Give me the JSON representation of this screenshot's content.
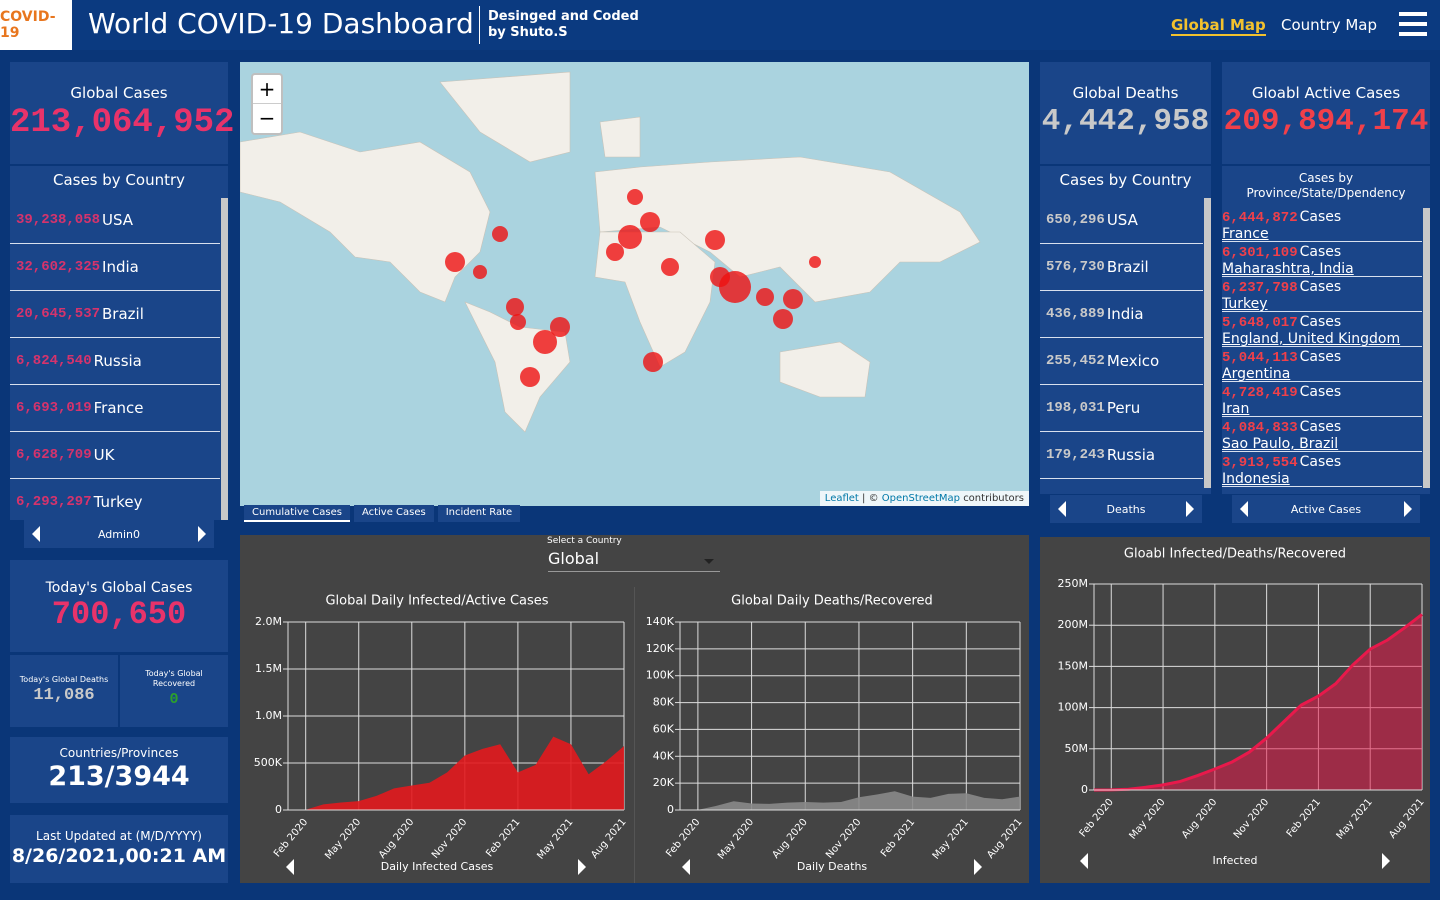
{
  "header": {
    "logo": "COVID-19",
    "title": "World COVID-19 Dashboard",
    "credit_line1": "Desinged and Coded",
    "credit_line2": "by Shuto.S",
    "nav": [
      "Global Map",
      "Country Map"
    ]
  },
  "global_cases": {
    "label": "Global Cases",
    "value": "213,064,952"
  },
  "cases_by_country": {
    "title": "Cases by Country",
    "nav_label": "Admin0",
    "rows": [
      {
        "count": "39,238,058",
        "name": "USA"
      },
      {
        "count": "32,602,325",
        "name": "India"
      },
      {
        "count": "20,645,537",
        "name": "Brazil"
      },
      {
        "count": "6,824,540",
        "name": "Russia"
      },
      {
        "count": "6,693,019",
        "name": "France"
      },
      {
        "count": "6,628,709",
        "name": "UK"
      },
      {
        "count": "6,293,297",
        "name": "Turkey"
      }
    ]
  },
  "todays_cases": {
    "label": "Today's Global Cases",
    "value": "700,650"
  },
  "todays_deaths": {
    "label": "Today's Global Deaths",
    "value": "11,086"
  },
  "todays_recovered": {
    "label": "Today's Global Recovered",
    "value": "0"
  },
  "countries_provinces": {
    "label": "Countries/Provinces",
    "value": "213/3944"
  },
  "last_updated": {
    "label": "Last Updated at (M/D/YYYY)",
    "value": "8/26/2021,00:21 AM"
  },
  "map": {
    "zoom_in": "+",
    "zoom_out": "−",
    "attribution_link1": "Leaflet",
    "attribution_sep": "| ©",
    "attribution_link2": "OpenStreetMap",
    "attribution_tail": "contributors",
    "tabs": [
      "Cumulative Cases",
      "Active Cases",
      "Incident Rate"
    ]
  },
  "country_select": {
    "label": "Select a Country",
    "value": "Global"
  },
  "global_deaths": {
    "label": "Global Deaths",
    "value": "4,442,958",
    "list_title": "Cases by Country",
    "nav_label": "Deaths",
    "rows": [
      {
        "count": "650,296",
        "name": "USA"
      },
      {
        "count": "576,730",
        "name": "Brazil"
      },
      {
        "count": "436,889",
        "name": "India"
      },
      {
        "count": "255,452",
        "name": "Mexico"
      },
      {
        "count": "198,031",
        "name": "Peru"
      },
      {
        "count": "179,243",
        "name": "Russia"
      }
    ]
  },
  "active_cases": {
    "label": "Gloabl Active Cases",
    "value": "209,894,174",
    "list_title": "Cases by Province/State/Dpendency",
    "nav_label": "Active Cases",
    "rows": [
      {
        "count": "6,444,872",
        "unit": "Cases",
        "place": "France"
      },
      {
        "count": "6,301,109",
        "unit": "Cases",
        "place": "Maharashtra, India"
      },
      {
        "count": "6,237,798",
        "unit": "Cases",
        "place": "Turkey"
      },
      {
        "count": "5,648,017",
        "unit": "Cases",
        "place": "England, United Kingdom"
      },
      {
        "count": "5,044,113",
        "unit": "Cases",
        "place": "Argentina"
      },
      {
        "count": "4,728,419",
        "unit": "Cases",
        "place": "Iran"
      },
      {
        "count": "4,084,833",
        "unit": "Cases",
        "place": "Sao Paulo, Brazil"
      },
      {
        "count": "3,913,554",
        "unit": "Cases",
        "place": "Indonesia"
      }
    ]
  },
  "chart_data": [
    {
      "type": "area",
      "title": "Global Daily Infected/Active Cases",
      "caption": "Daily Infected Cases",
      "color": "#e3191e",
      "x": [
        "2020-01",
        "2020-02",
        "2020-03",
        "2020-04",
        "2020-05",
        "2020-06",
        "2020-07",
        "2020-08",
        "2020-09",
        "2020-10",
        "2020-11",
        "2020-12",
        "2021-01",
        "2021-02",
        "2021-03",
        "2021-04",
        "2021-05",
        "2021-06",
        "2021-07",
        "2021-08"
      ],
      "values": [
        0,
        2000,
        60000,
        80000,
        95000,
        150000,
        230000,
        260000,
        290000,
        400000,
        580000,
        650000,
        700000,
        400000,
        480000,
        780000,
        700000,
        380000,
        520000,
        680000
      ],
      "ylim": [
        0,
        2000000
      ],
      "yticks": [
        0,
        {
          "value": 500000,
          "label": "500K"
        },
        {
          "value": 1000000,
          "label": "1.0M"
        },
        {
          "value": 1500000,
          "label": "1.5M"
        },
        {
          "value": 2000000,
          "label": "2.0M"
        }
      ],
      "xticks": [
        {
          "value": "2020-02",
          "label": "Feb 2020"
        },
        {
          "value": "2020-05",
          "label": "May 2020"
        },
        {
          "value": "2020-08",
          "label": "Aug 2020"
        },
        {
          "value": "2020-11",
          "label": "Nov 2020"
        },
        {
          "value": "2021-02",
          "label": "Feb 2021"
        },
        {
          "value": "2021-05",
          "label": "May 2021"
        },
        {
          "value": "2021-08",
          "label": "Aug 2021"
        }
      ],
      "grid": true
    },
    {
      "type": "area",
      "title": "Global Daily Deaths/Recovered",
      "caption": "Daily Deaths",
      "color": "#8a8a8a",
      "x": [
        "2020-01",
        "2020-02",
        "2020-03",
        "2020-04",
        "2020-05",
        "2020-06",
        "2020-07",
        "2020-08",
        "2020-09",
        "2020-10",
        "2020-11",
        "2020-12",
        "2021-01",
        "2021-02",
        "2021-03",
        "2021-04",
        "2021-05",
        "2021-06",
        "2021-07",
        "2021-08"
      ],
      "values": [
        0,
        50,
        3000,
        6500,
        4800,
        4600,
        5500,
        6000,
        5500,
        6000,
        9500,
        11500,
        14000,
        10000,
        9000,
        12000,
        12500,
        9000,
        8000,
        10000
      ],
      "ylim": [
        0,
        140000
      ],
      "yticks": [
        0,
        {
          "value": 20000,
          "label": "20K"
        },
        {
          "value": 40000,
          "label": "40K"
        },
        {
          "value": 60000,
          "label": "60K"
        },
        {
          "value": 80000,
          "label": "80K"
        },
        {
          "value": 100000,
          "label": "100K"
        },
        {
          "value": 120000,
          "label": "120K"
        },
        {
          "value": 140000,
          "label": "140K"
        }
      ],
      "xticks": [
        {
          "value": "2020-02",
          "label": "Feb 2020"
        },
        {
          "value": "2020-05",
          "label": "May 2020"
        },
        {
          "value": "2020-08",
          "label": "Aug 2020"
        },
        {
          "value": "2020-11",
          "label": "Nov 2020"
        },
        {
          "value": "2021-02",
          "label": "Feb 2021"
        },
        {
          "value": "2021-05",
          "label": "May 2021"
        },
        {
          "value": "2021-08",
          "label": "Aug 2021"
        }
      ],
      "grid": true
    },
    {
      "type": "area",
      "title": "Gloabl Infected/Deaths/Recovered",
      "caption": "Infected",
      "color": "#e8194b",
      "x": [
        "2020-01",
        "2020-02",
        "2020-03",
        "2020-04",
        "2020-05",
        "2020-06",
        "2020-07",
        "2020-08",
        "2020-09",
        "2020-10",
        "2020-11",
        "2020-12",
        "2021-01",
        "2021-02",
        "2021-03",
        "2021-04",
        "2021-05",
        "2021-06",
        "2021-07",
        "2021-08"
      ],
      "values": [
        0,
        80000,
        900000,
        3300000,
        6200000,
        10400000,
        17500000,
        25500000,
        34000000,
        46000000,
        63000000,
        83000000,
        103000000,
        114000000,
        129000000,
        152000000,
        171000000,
        182000000,
        197000000,
        213000000
      ],
      "ylim": [
        0,
        250000000
      ],
      "yticks": [
        0,
        {
          "value": 50000000,
          "label": "50M"
        },
        {
          "value": 100000000,
          "label": "100M"
        },
        {
          "value": 150000000,
          "label": "150M"
        },
        {
          "value": 200000000,
          "label": "200M"
        },
        {
          "value": 250000000,
          "label": "250M"
        }
      ],
      "xticks": [
        {
          "value": "2020-02",
          "label": "Feb 2020"
        },
        {
          "value": "2020-05",
          "label": "May 2020"
        },
        {
          "value": "2020-08",
          "label": "Aug 2020"
        },
        {
          "value": "2020-11",
          "label": "Nov 2020"
        },
        {
          "value": "2021-02",
          "label": "Feb 2021"
        },
        {
          "value": "2021-05",
          "label": "May 2021"
        },
        {
          "value": "2021-08",
          "label": "Aug 2021"
        }
      ],
      "grid": true
    }
  ]
}
